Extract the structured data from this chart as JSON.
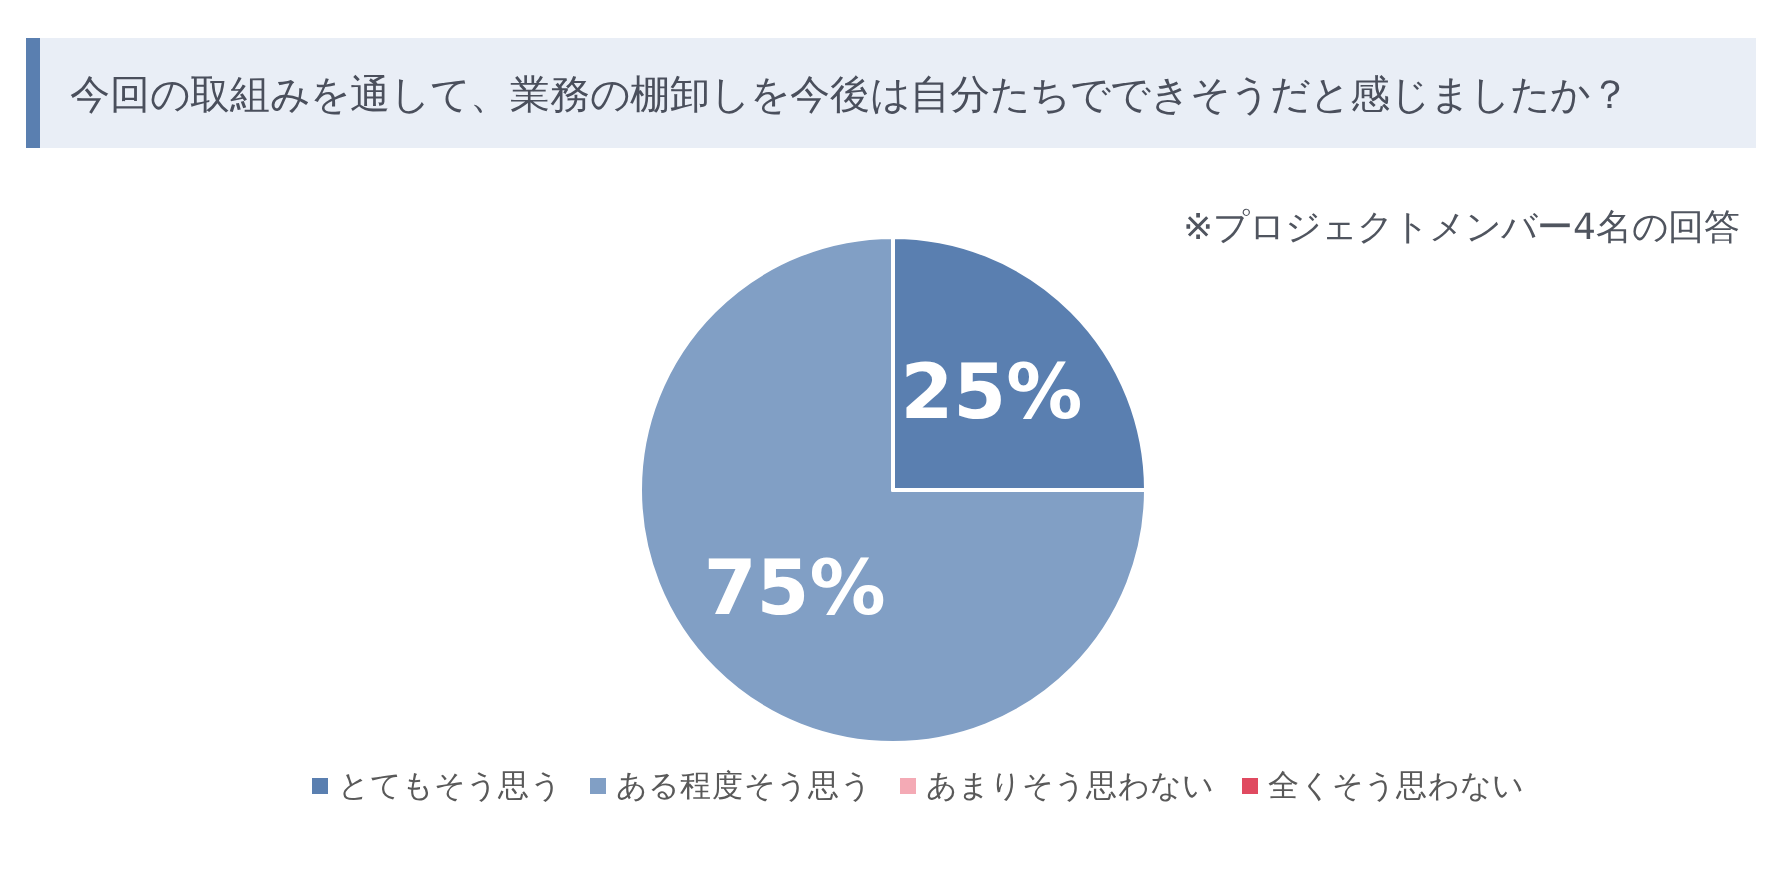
{
  "chart_data": {
    "type": "pie",
    "title": "今回の取組みを通して、業務の棚卸しを今後は自分たちでできそうだと感じましたか？",
    "annotations": [
      "※プロジェクトメンバー4名の回答"
    ],
    "categories": [
      "とてもそう思う",
      "ある程度そう思う",
      "あまりそう思わない",
      "全くそう思わない"
    ],
    "values": [
      25,
      75,
      0,
      0
    ],
    "colors": [
      "#5a7fb0",
      "#819fc5",
      "#f4aab5",
      "#e04a60"
    ],
    "value_labels": [
      "25%",
      "75%",
      null,
      null
    ],
    "legend": "bottom"
  }
}
